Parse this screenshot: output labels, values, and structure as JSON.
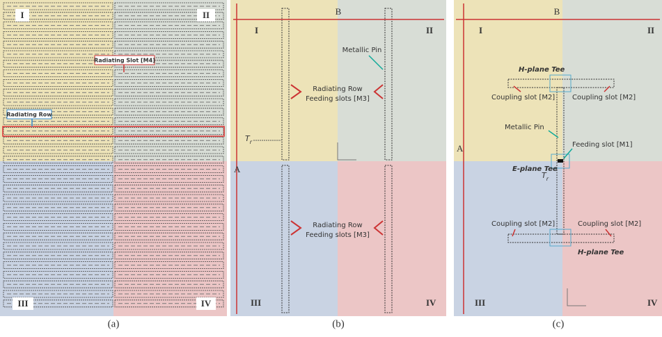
{
  "panels": [
    {
      "label": "(a)",
      "quadrants": [
        "I",
        "II",
        "III",
        "IV"
      ],
      "slot_label": "Radiating Slot [M4]",
      "row_label": "Radiating Row"
    },
    {
      "label": "(b)",
      "width": "B",
      "height": "A",
      "quadrants": [
        "I",
        "II",
        "III",
        "IV"
      ],
      "pin": "Metallic Pin",
      "upper": [
        "Radiating Row",
        "Feeding slots [M3]"
      ],
      "lower": [
        "Radiating Row",
        "Feeding slots [M3]"
      ],
      "tr": {
        "main": "T",
        "sub": "r"
      }
    },
    {
      "label": "(c)",
      "width": "B",
      "height": "A",
      "quadrants": [
        "I",
        "II",
        "III",
        "IV"
      ],
      "upper_tee": "H-plane Tee",
      "lower_tee": "H-plane Tee",
      "coupling": [
        "Coupling slot [M2]",
        "Coupling slot [M2]",
        "Coupling slot [M2]",
        "Coupling slot [M2]"
      ],
      "pin": "Metallic Pin",
      "feed": "Feeding slot [M1]",
      "e_tee": "E-plane Tee",
      "tr": {
        "main": "T",
        "sub": "r"
      }
    }
  ]
}
